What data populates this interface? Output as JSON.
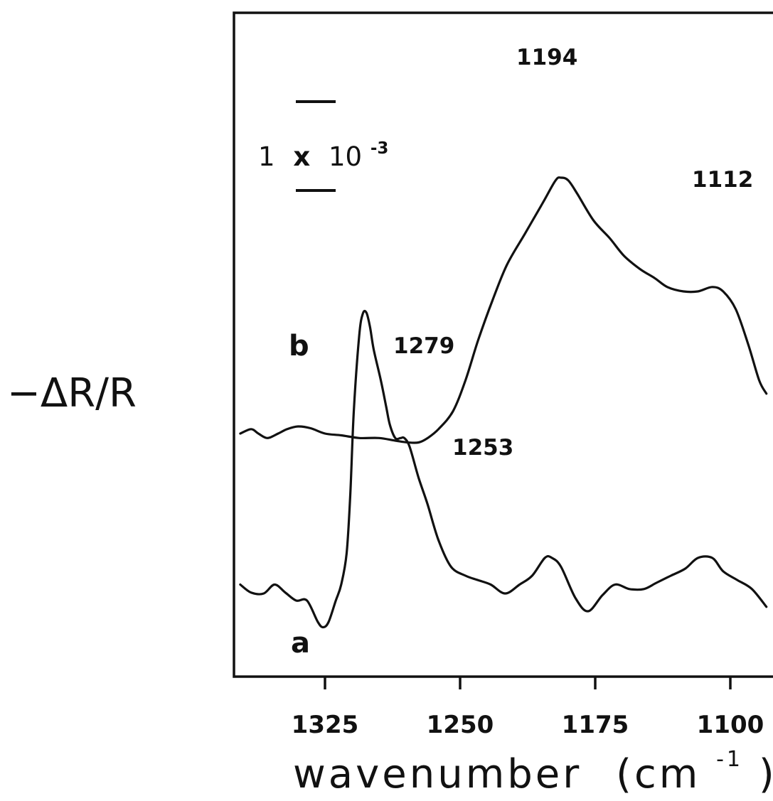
{
  "chart_data": {
    "type": "line",
    "xlabel": "wavenumber",
    "xlabel_unit": "(cm",
    "xlabel_unit_exp": "-1",
    "xlabel_unit_close": ")",
    "ylabel": "−ΔR/R",
    "x_ticks": [
      1325,
      1250,
      1175,
      1100
    ],
    "x_tick_labels": [
      "1325",
      "1250",
      "1175",
      "1100"
    ],
    "xlim": [
      1372,
      1080
    ],
    "x_reversed": true,
    "scale_bar": {
      "prefix": "1",
      "times": "x",
      "base": "10",
      "exponent": "-3"
    },
    "series": [
      {
        "name": "a",
        "x": [
          1372,
          1366,
          1359,
          1353,
          1347,
          1341,
          1335,
          1329,
          1326,
          1323,
          1319,
          1316,
          1313,
          1311,
          1309,
          1306,
          1304,
          1302,
          1300,
          1298,
          1294,
          1291,
          1289,
          1286,
          1283,
          1281,
          1278,
          1273,
          1268,
          1262,
          1255,
          1247,
          1240,
          1233,
          1225,
          1217,
          1210,
          1203,
          1199,
          1194,
          1186,
          1179,
          1171,
          1164,
          1156,
          1148,
          1141,
          1133,
          1125,
          1118,
          1110,
          1104,
          1096,
          1088,
          1080
        ],
        "y": [
          0.3,
          0.21,
          0.2,
          0.3,
          0.21,
          0.12,
          0.12,
          -0.12,
          -0.18,
          -0.12,
          0.12,
          0.3,
          0.65,
          1.3,
          2.25,
          3.1,
          3.35,
          3.36,
          3.2,
          2.95,
          2.6,
          2.3,
          2.1,
          1.95,
          1.95,
          1.95,
          1.85,
          1.5,
          1.2,
          0.8,
          0.5,
          0.4,
          0.35,
          0.3,
          0.2,
          0.3,
          0.4,
          0.6,
          0.6,
          0.5,
          0.15,
          0.0,
          0.18,
          0.3,
          0.25,
          0.25,
          0.32,
          0.4,
          0.48,
          0.6,
          0.6,
          0.45,
          0.35,
          0.25,
          0.05
        ]
      },
      {
        "name": "b",
        "x": [
          1372,
          1366,
          1362,
          1357,
          1351,
          1346,
          1340,
          1333,
          1325,
          1316,
          1306,
          1295,
          1286,
          1279,
          1273,
          1268,
          1262,
          1254,
          1247,
          1240,
          1232,
          1224,
          1214,
          1204,
          1197,
          1194,
          1190,
          1185,
          1176,
          1167,
          1159,
          1150,
          1142,
          1135,
          1126,
          1118,
          1110,
          1104,
          1097,
          1090,
          1084,
          1080
        ],
        "y": [
          2.0,
          2.05,
          2.0,
          1.95,
          2.0,
          2.05,
          2.08,
          2.06,
          2.0,
          1.98,
          1.95,
          1.95,
          1.92,
          1.9,
          1.9,
          1.95,
          2.05,
          2.25,
          2.6,
          3.05,
          3.5,
          3.9,
          4.25,
          4.6,
          4.85,
          4.88,
          4.85,
          4.7,
          4.4,
          4.2,
          4.0,
          3.85,
          3.75,
          3.65,
          3.6,
          3.6,
          3.65,
          3.6,
          3.4,
          3.0,
          2.6,
          2.45
        ]
      }
    ],
    "series_labels": [
      "a",
      "b"
    ],
    "annotations": [
      "1279",
      "1253",
      "1194",
      "1112"
    ]
  }
}
